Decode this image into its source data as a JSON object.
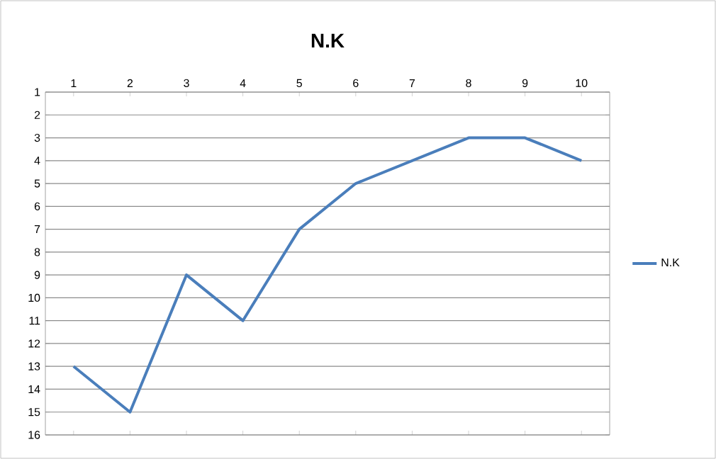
{
  "chart_data": {
    "type": "line",
    "title": "N.K",
    "categories": [
      "1",
      "2",
      "3",
      "4",
      "5",
      "6",
      "7",
      "8",
      "9",
      "10"
    ],
    "series": [
      {
        "name": "N.K",
        "color": "#4a7ebb",
        "values": [
          13,
          15,
          9,
          11,
          7,
          5,
          4,
          3,
          3,
          4
        ]
      }
    ],
    "ylim": [
      16,
      1
    ],
    "yticks": [
      1,
      2,
      3,
      4,
      5,
      6,
      7,
      8,
      9,
      10,
      11,
      12,
      13,
      14,
      15,
      16
    ],
    "grid": "y",
    "legend": "right",
    "marker": "none",
    "line_style": "solid"
  }
}
